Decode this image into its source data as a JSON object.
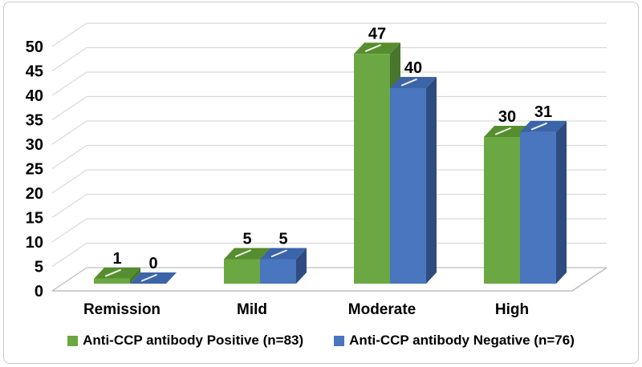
{
  "chart_data": {
    "type": "bar",
    "style": "3d-clustered",
    "title": "",
    "xlabel": "",
    "ylabel": "",
    "categories": [
      "Remission",
      "Mild",
      "Moderate",
      "High"
    ],
    "series": [
      {
        "name": "Anti-CCP antibody Positive (n=83)",
        "values": [
          1,
          5,
          47,
          30
        ],
        "color_front": "#6BA843",
        "color_top": "#568D2E",
        "color_side": "#49762B"
      },
      {
        "name": "Anti-CCP antibody Negative (n=76)",
        "values": [
          0,
          5,
          40,
          31
        ],
        "color_front": "#4A76C0",
        "color_top": "#3C64A8",
        "color_side": "#2E4C80"
      }
    ],
    "y_ticks": [
      0,
      5,
      10,
      15,
      20,
      25,
      30,
      35,
      40,
      45,
      50
    ],
    "ylim": [
      0,
      50
    ],
    "grid": true,
    "data_labels": true,
    "legend_position": "bottom",
    "colors": {
      "gridline": "#D9D9D9",
      "floor_edge": "#BDBDBD",
      "label_text": "#000000",
      "background": "#FFFFFF",
      "frame_border": "#C8C8C8",
      "bar_top_highlight": "#FFFFFF"
    }
  },
  "legend": {
    "items": [
      {
        "label": "Anti-CCP antibody Positive (n=83)",
        "color": "#6BA843"
      },
      {
        "label": "Anti-CCP antibody Negative (n=76)",
        "color": "#4A76C0"
      }
    ]
  }
}
